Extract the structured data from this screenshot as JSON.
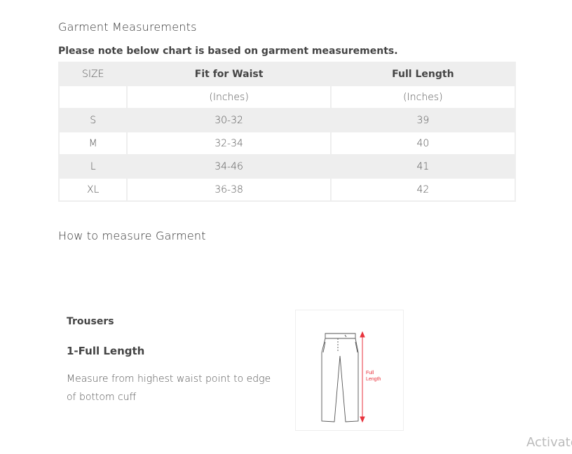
{
  "title": "Garment Measurements",
  "note": "Please note below chart is based on garment measurements.",
  "table": {
    "headers": [
      "SIZE",
      "Fit for Waist",
      "Full Length"
    ],
    "units": [
      "",
      "(Inches)",
      "(Inches)"
    ],
    "rows": [
      [
        "S",
        "30-32",
        "39"
      ],
      [
        "M",
        "32-34",
        "40"
      ],
      [
        "L",
        "34-46",
        "41"
      ],
      [
        "XL",
        "36-38",
        "42"
      ]
    ]
  },
  "how_to": {
    "title": "How to measure Garment",
    "garment": "Trousers",
    "step": "1-Full Length",
    "description": "Measure from highest waist point to edge of bottom cuff",
    "image_label": [
      "Full",
      "Length"
    ],
    "accent_color": "#e8323c"
  },
  "watermark": "Activate"
}
